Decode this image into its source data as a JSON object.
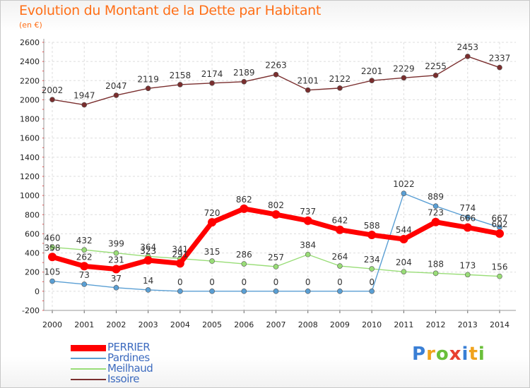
{
  "title": "Evolution du Montant de la Dette par Habitant",
  "subtitle": "(en €)",
  "logo": {
    "letters": [
      "P",
      "r",
      "o",
      "x",
      "i",
      "t",
      "i"
    ],
    "colors": [
      "#3a7fd5",
      "#f0a31c",
      "#6abf3a",
      "#e8402f",
      "#3a7fd5",
      "#f0a31c",
      "#6abf3a"
    ]
  },
  "chart_data": {
    "type": "line",
    "title": "Evolution du Montant de la Dette par Habitant",
    "ylabel": "(en €)",
    "x": [
      "2000",
      "2001",
      "2002",
      "2003",
      "2004",
      "2005",
      "2006",
      "2007",
      "2008",
      "2009",
      "2010",
      "2011",
      "2012",
      "2013",
      "2014"
    ],
    "ylim": [
      -200,
      2600
    ],
    "yticks": [
      "-200",
      "0",
      "200",
      "400",
      "600",
      "800",
      "1000",
      "1200",
      "1400",
      "1600",
      "1800",
      "2000",
      "2200",
      "2400",
      "2600"
    ],
    "grid": true,
    "legend_position": "bottom-left",
    "series": [
      {
        "name": "PERRIER",
        "color": "#ff0000",
        "values": [
          358,
          262,
          231,
          323,
          291,
          720,
          862,
          802,
          737,
          642,
          588,
          544,
          723,
          666,
          602
        ],
        "labels": [
          "358",
          "262",
          "231",
          "323",
          "291",
          "720",
          "862",
          "802",
          "737",
          "642",
          "588",
          "544",
          "723",
          "666",
          "602"
        ]
      },
      {
        "name": "Pardines",
        "color": "#5a9fd4",
        "values": [
          105,
          73,
          37,
          14,
          0,
          0,
          0,
          0,
          0,
          0,
          0,
          1022,
          889,
          774,
          667
        ],
        "labels": [
          "105",
          "73",
          "37",
          "14",
          "0",
          "0",
          "0",
          "0",
          "0",
          "0",
          "0",
          "1022",
          "889",
          "774",
          "667"
        ]
      },
      {
        "name": "Meilhaud",
        "color": "#99dd77",
        "values": [
          460,
          432,
          399,
          364,
          341,
          315,
          286,
          257,
          384,
          264,
          234,
          204,
          188,
          173,
          156
        ],
        "labels": [
          "460",
          "432",
          "399",
          "364",
          "341",
          "315",
          "286",
          "257",
          "384",
          "264",
          "234",
          "204",
          "188",
          "173",
          "156"
        ]
      },
      {
        "name": "Issoire",
        "color": "#7a2e2e",
        "values": [
          2002,
          1947,
          2047,
          2119,
          2158,
          2174,
          2189,
          2263,
          2101,
          2122,
          2201,
          2229,
          2255,
          2453,
          2337
        ],
        "labels": [
          "2002",
          "1947",
          "2047",
          "2119",
          "2158",
          "2174",
          "2189",
          "2263",
          "2101",
          "2122",
          "2201",
          "2229",
          "2255",
          "2453",
          "2337"
        ]
      }
    ]
  }
}
